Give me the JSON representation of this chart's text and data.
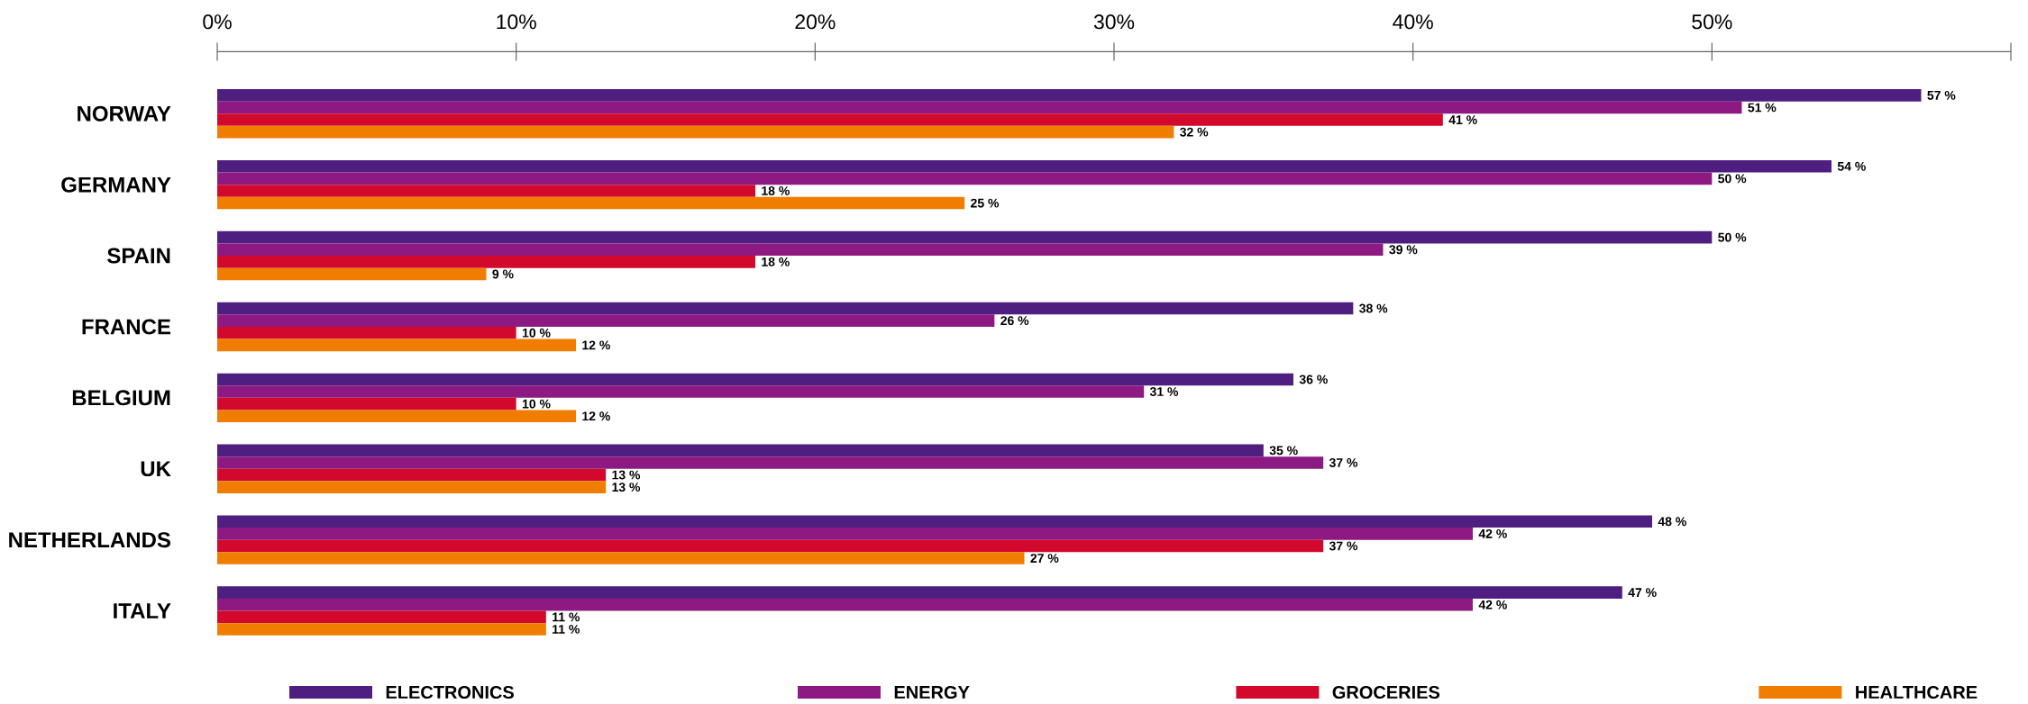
{
  "chart_data": {
    "type": "bar",
    "orientation": "horizontal",
    "categories": [
      "NORWAY",
      "GERMANY",
      "SPAIN",
      "FRANCE",
      "BELGIUM",
      "UK",
      "NETHERLANDS",
      "ITALY"
    ],
    "series": [
      {
        "name": "ELECTRONICS",
        "color": "#4e1f80",
        "values": [
          57,
          54,
          50,
          38,
          36,
          35,
          48,
          47
        ],
        "value_labels": [
          "57 %",
          "54 %",
          "50 %",
          "38 %",
          "36 %",
          "35 %",
          "48 %",
          "47 %"
        ]
      },
      {
        "name": "ENERGY",
        "color": "#8c1a82",
        "values": [
          51,
          50,
          39,
          26,
          31,
          37,
          42,
          42
        ],
        "value_labels": [
          "51 %",
          "50 %",
          "39 %",
          "26 %",
          "31 %",
          "37 %",
          "42 %",
          "42 %"
        ]
      },
      {
        "name": "GROCERIES",
        "color": "#d3082d",
        "values": [
          41,
          18,
          18,
          10,
          10,
          13,
          37,
          11
        ],
        "value_labels": [
          "41 %",
          "18 %",
          "18 %",
          "10 %",
          "10 %",
          "13 %",
          "37 %",
          "11 %"
        ]
      },
      {
        "name": "HEALTHCARE",
        "color": "#f07c00",
        "values": [
          32,
          25,
          9,
          12,
          12,
          13,
          27,
          11
        ],
        "value_labels": [
          "32 %",
          "25 %",
          "9 %",
          "12 %",
          "12 %",
          "13 %",
          "27 %",
          "11 %"
        ]
      }
    ],
    "xlim": [
      0,
      60
    ],
    "xticks": [
      {
        "value": 0,
        "label": "0%"
      },
      {
        "value": 10,
        "label": "10%"
      },
      {
        "value": 20,
        "label": "20%"
      },
      {
        "value": 30,
        "label": "30%"
      },
      {
        "value": 40,
        "label": "40%"
      },
      {
        "value": 50,
        "label": "50%"
      }
    ],
    "legend": "bottom"
  }
}
